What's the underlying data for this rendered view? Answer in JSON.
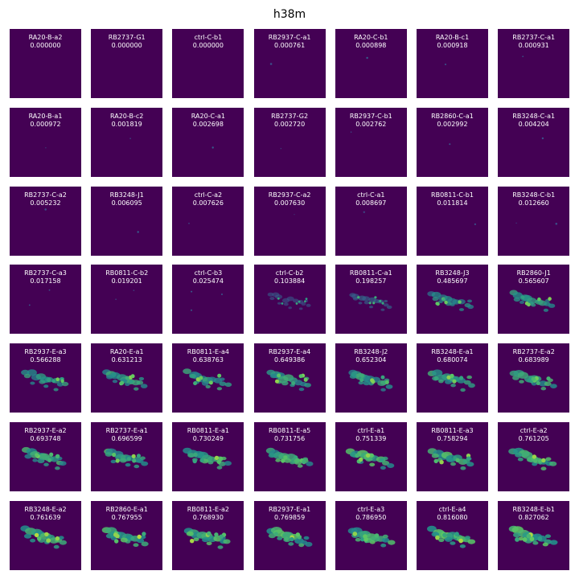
{
  "title": "h38m",
  "chart_data": {
    "type": "heatmap",
    "title": "h38m",
    "colormap": "viridis",
    "background_color": "#440154",
    "rows": 7,
    "cols": 7,
    "panels": [
      {
        "name": "RA20-B-a2",
        "value": "0.000000"
      },
      {
        "name": "RB2737-G1",
        "value": "0.000000"
      },
      {
        "name": "ctrl-C-b1",
        "value": "0.000000"
      },
      {
        "name": "RB2937-C-a1",
        "value": "0.000761"
      },
      {
        "name": "RA20-C-b1",
        "value": "0.000898"
      },
      {
        "name": "RA20-B-c1",
        "value": "0.000918"
      },
      {
        "name": "RB2737-C-a1",
        "value": "0.000931"
      },
      {
        "name": "RA20-B-a1",
        "value": "0.000972"
      },
      {
        "name": "RA20-B-c2",
        "value": "0.001819"
      },
      {
        "name": "RA20-C-a1",
        "value": "0.002698"
      },
      {
        "name": "RB2737-G2",
        "value": "0.002720"
      },
      {
        "name": "RB2937-C-b1",
        "value": "0.002762"
      },
      {
        "name": "RB2860-C-a1",
        "value": "0.002992"
      },
      {
        "name": "RB3248-C-a1",
        "value": "0.004204"
      },
      {
        "name": "RB2737-C-a2",
        "value": "0.005232"
      },
      {
        "name": "RB3248-J1",
        "value": "0.006095"
      },
      {
        "name": "ctrl-C-a2",
        "value": "0.007626"
      },
      {
        "name": "RB2937-C-a2",
        "value": "0.007630"
      },
      {
        "name": "ctrl-C-a1",
        "value": "0.008697"
      },
      {
        "name": "RB0811-C-b1",
        "value": "0.011814"
      },
      {
        "name": "RB3248-C-b1",
        "value": "0.012660"
      },
      {
        "name": "RB2737-C-a3",
        "value": "0.017158"
      },
      {
        "name": "RB0811-C-b2",
        "value": "0.019201"
      },
      {
        "name": "ctrl-C-b3",
        "value": "0.025474"
      },
      {
        "name": "ctrl-C-b2",
        "value": "0.103884"
      },
      {
        "name": "RB0811-C-a1",
        "value": "0.198257"
      },
      {
        "name": "RB3248-J3",
        "value": "0.485697"
      },
      {
        "name": "RB2860-J1",
        "value": "0.565607"
      },
      {
        "name": "RB2937-E-a3",
        "value": "0.566288"
      },
      {
        "name": "RA20-E-a1",
        "value": "0.631213"
      },
      {
        "name": "RB0811-E-a4",
        "value": "0.638763"
      },
      {
        "name": "RB2937-E-a4",
        "value": "0.649386"
      },
      {
        "name": "RB3248-J2",
        "value": "0.652304"
      },
      {
        "name": "RB3248-E-a1",
        "value": "0.680074"
      },
      {
        "name": "RB2737-E-a2",
        "value": "0.683989"
      },
      {
        "name": "RB2937-E-a2",
        "value": "0.693748"
      },
      {
        "name": "RB2737-E-a1",
        "value": "0.696599"
      },
      {
        "name": "RB0811-E-a1",
        "value": "0.730249"
      },
      {
        "name": "RB0811-E-a5",
        "value": "0.731756"
      },
      {
        "name": "ctrl-E-a1",
        "value": "0.751339"
      },
      {
        "name": "RB0811-E-a3",
        "value": "0.758294"
      },
      {
        "name": "ctrl-E-a2",
        "value": "0.761205"
      },
      {
        "name": "RB3248-E-a2",
        "value": "0.761639"
      },
      {
        "name": "RB2860-E-a1",
        "value": "0.767955"
      },
      {
        "name": "RB0811-E-a2",
        "value": "0.768930"
      },
      {
        "name": "RB2937-E-a1",
        "value": "0.769859"
      },
      {
        "name": "ctrl-E-a3",
        "value": "0.786950"
      },
      {
        "name": "ctrl-E-a4",
        "value": "0.816080"
      },
      {
        "name": "RB3248-E-b1",
        "value": "0.827062"
      }
    ]
  }
}
